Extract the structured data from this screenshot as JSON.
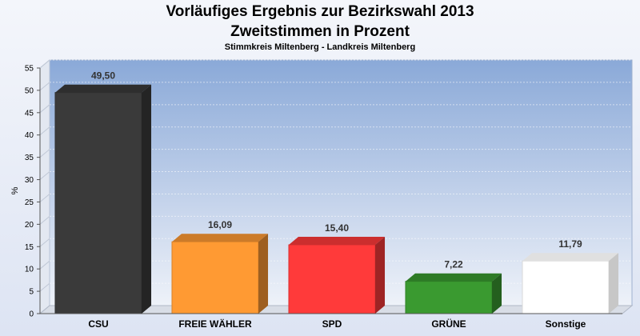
{
  "chart_data": {
    "type": "bar",
    "title": "Vorläufiges Ergebnis zur Bezirkswahl 2013",
    "subtitle": "Zweitstimmen in Prozent",
    "caption": "Stimmkreis Miltenberg - Landkreis Miltenberg",
    "ylabel": "%",
    "ylim": [
      0,
      55
    ],
    "yticks": [
      "0",
      "5",
      "10",
      "15",
      "20",
      "25",
      "30",
      "35",
      "40",
      "45",
      "50",
      "55"
    ],
    "grid": true,
    "categories": [
      "CSU",
      "FREIE WÄHLER",
      "SPD",
      "GRÜNE",
      "Sonstige"
    ],
    "values": [
      49.5,
      16.09,
      15.4,
      7.22,
      11.79
    ],
    "value_labels": [
      "49,50",
      "16,09",
      "15,40",
      "7,22",
      "11,79"
    ],
    "colors": [
      "#3a3a3a",
      "#ff9a33",
      "#ff3a3a",
      "#3a9a30",
      "#ffffff"
    ]
  }
}
